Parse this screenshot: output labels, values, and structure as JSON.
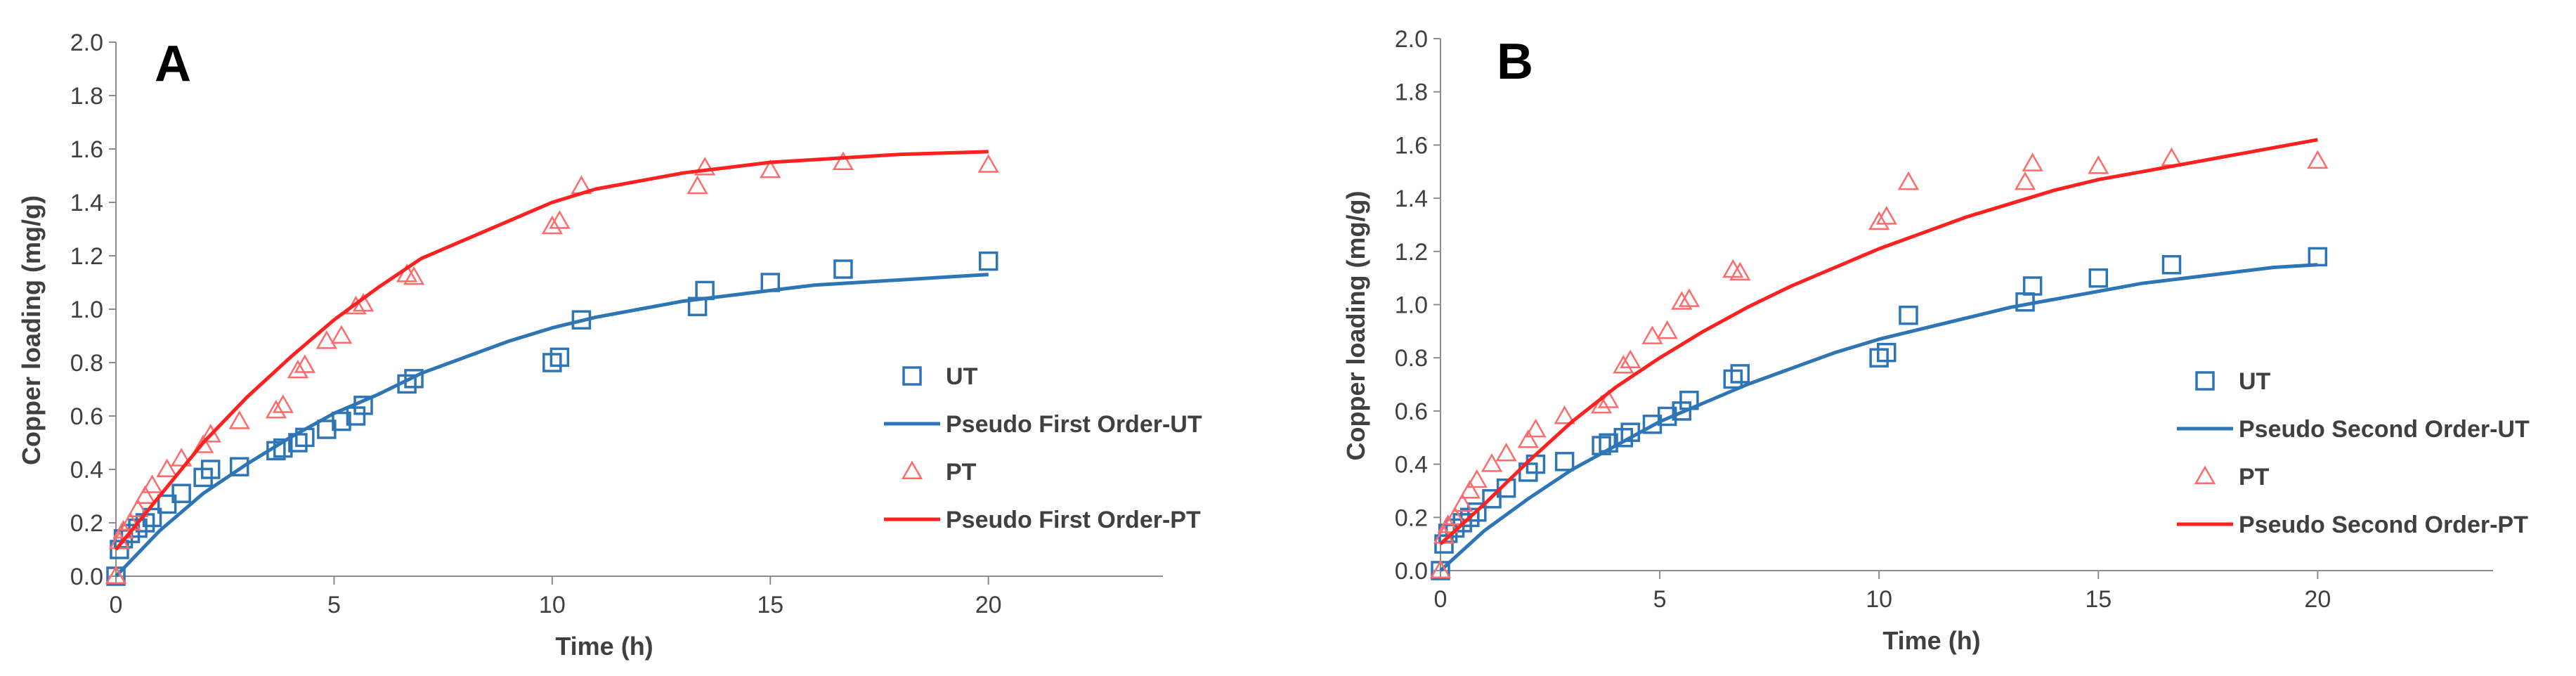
{
  "chart_data": [
    {
      "type": "scatter",
      "panel": "A",
      "xlabel": "Time (h)",
      "ylabel": "Copper loading (mg/g)",
      "xlim": [
        0,
        24
      ],
      "ylim": [
        0,
        2.0
      ],
      "xticks": [
        0,
        5,
        10,
        15,
        20
      ],
      "yticks": [
        0.0,
        0.2,
        0.4,
        0.6,
        0.8,
        1.0,
        1.2,
        1.4,
        1.6,
        1.8,
        2.0
      ],
      "ytick_labels": [
        "0.0",
        "0.2",
        "0.4",
        "0.6",
        "0.8",
        "1.0",
        "1.2",
        "1.4",
        "1.6",
        "1.8",
        "2.0"
      ],
      "legend_position": "right",
      "series": [
        {
          "name": "UT",
          "kind": "marker",
          "marker": "square",
          "color": "#2E75B6",
          "x": [
            0,
            0.08,
            0.17,
            0.33,
            0.5,
            0.67,
            0.83,
            1.17,
            1.5,
            2.0,
            2.17,
            2.83,
            3.67,
            3.83,
            4.17,
            4.33,
            4.83,
            5.17,
            5.5,
            5.67,
            6.67,
            6.83,
            10.0,
            10.17,
            10.67,
            13.33,
            13.5,
            15.0,
            16.67,
            20.0
          ],
          "y": [
            0,
            0.1,
            0.14,
            0.16,
            0.18,
            0.2,
            0.22,
            0.27,
            0.31,
            0.37,
            0.4,
            0.41,
            0.47,
            0.48,
            0.5,
            0.52,
            0.55,
            0.58,
            0.6,
            0.64,
            0.72,
            0.74,
            0.8,
            0.82,
            0.96,
            1.01,
            1.07,
            1.1,
            1.15,
            1.18
          ]
        },
        {
          "name": "Pseudo First Order-UT",
          "kind": "line",
          "color": "#2E75B6",
          "x": [
            0,
            1,
            2,
            3,
            4,
            5,
            6,
            7,
            8,
            9,
            10,
            11,
            12,
            13,
            14,
            15,
            16,
            17,
            18,
            19,
            20
          ],
          "y": [
            0,
            0.17,
            0.31,
            0.42,
            0.52,
            0.61,
            0.68,
            0.76,
            0.82,
            0.88,
            0.93,
            0.97,
            1.0,
            1.03,
            1.05,
            1.07,
            1.09,
            1.1,
            1.11,
            1.12,
            1.13
          ]
        },
        {
          "name": "PT",
          "kind": "marker",
          "marker": "triangle",
          "color": "#FF6B6B",
          "x": [
            0,
            0.08,
            0.17,
            0.33,
            0.5,
            0.67,
            0.83,
            1.17,
            1.5,
            2.0,
            2.17,
            2.83,
            3.67,
            3.83,
            4.17,
            4.33,
            4.83,
            5.17,
            5.5,
            5.67,
            6.67,
            6.83,
            10.0,
            10.17,
            10.67,
            13.33,
            13.5,
            15.0,
            16.67,
            20.0
          ],
          "y": [
            0,
            0.13,
            0.17,
            0.2,
            0.25,
            0.3,
            0.34,
            0.4,
            0.44,
            0.49,
            0.53,
            0.58,
            0.62,
            0.64,
            0.77,
            0.79,
            0.88,
            0.9,
            1.01,
            1.02,
            1.13,
            1.12,
            1.31,
            1.33,
            1.46,
            1.46,
            1.53,
            1.52,
            1.55,
            1.54
          ]
        },
        {
          "name": "Pseudo First Order-PT",
          "kind": "line",
          "color": "#FF2020",
          "x": [
            0,
            1,
            2,
            3,
            4,
            5,
            6,
            7,
            8,
            9,
            10,
            11,
            12,
            13,
            14,
            15,
            16,
            17,
            18,
            19,
            20
          ],
          "y": [
            0.1,
            0.3,
            0.5,
            0.67,
            0.82,
            0.96,
            1.08,
            1.19,
            1.26,
            1.33,
            1.4,
            1.45,
            1.48,
            1.51,
            1.53,
            1.55,
            1.56,
            1.57,
            1.58,
            1.585,
            1.59
          ]
        }
      ]
    },
    {
      "type": "scatter",
      "panel": "B",
      "xlabel": "Time (h)",
      "ylabel": "Copper loading (mg/g)",
      "xlim": [
        0,
        24
      ],
      "ylim": [
        0,
        2.0
      ],
      "xticks": [
        0,
        5,
        10,
        15,
        20
      ],
      "yticks": [
        0.0,
        0.2,
        0.4,
        0.6,
        0.8,
        1.0,
        1.2,
        1.4,
        1.6,
        1.8,
        2.0
      ],
      "ytick_labels": [
        "0.0",
        "0.2",
        "0.4",
        "0.6",
        "0.8",
        "1.0",
        "1.2",
        "1.4",
        "1.6",
        "1.8",
        "2.0"
      ],
      "legend_position": "right",
      "series": [
        {
          "name": "UT",
          "kind": "marker",
          "marker": "square",
          "color": "#2E75B6",
          "x": [
            0,
            0.08,
            0.17,
            0.33,
            0.5,
            0.67,
            0.83,
            1.17,
            1.5,
            2.0,
            2.17,
            2.83,
            3.67,
            3.83,
            4.17,
            4.33,
            4.83,
            5.17,
            5.5,
            5.67,
            6.67,
            6.83,
            10.0,
            10.17,
            10.67,
            13.33,
            13.5,
            15.0,
            16.67,
            20.0
          ],
          "y": [
            0,
            0.1,
            0.14,
            0.16,
            0.18,
            0.2,
            0.22,
            0.27,
            0.31,
            0.37,
            0.4,
            0.41,
            0.47,
            0.48,
            0.5,
            0.52,
            0.55,
            0.58,
            0.6,
            0.64,
            0.72,
            0.74,
            0.8,
            0.82,
            0.96,
            1.01,
            1.07,
            1.1,
            1.15,
            1.18
          ]
        },
        {
          "name": "Pseudo Second Order-UT",
          "kind": "line",
          "color": "#2E75B6",
          "x": [
            0,
            1,
            2,
            3,
            4,
            5,
            6,
            7,
            8,
            9,
            10,
            11,
            12,
            13,
            14,
            15,
            16,
            17,
            18,
            19,
            20
          ],
          "y": [
            0,
            0.15,
            0.27,
            0.38,
            0.47,
            0.56,
            0.63,
            0.7,
            0.76,
            0.82,
            0.87,
            0.91,
            0.95,
            0.99,
            1.02,
            1.05,
            1.08,
            1.1,
            1.12,
            1.14,
            1.15
          ]
        },
        {
          "name": "PT",
          "kind": "marker",
          "marker": "triangle",
          "color": "#FF6B6B",
          "x": [
            0,
            0.08,
            0.17,
            0.33,
            0.5,
            0.67,
            0.83,
            1.17,
            1.5,
            2.0,
            2.17,
            2.83,
            3.67,
            3.83,
            4.17,
            4.33,
            4.83,
            5.17,
            5.5,
            5.67,
            6.67,
            6.83,
            10.0,
            10.17,
            10.67,
            13.33,
            13.5,
            15.0,
            16.67,
            20.0
          ],
          "y": [
            0,
            0.13,
            0.17,
            0.2,
            0.25,
            0.3,
            0.34,
            0.4,
            0.44,
            0.49,
            0.53,
            0.58,
            0.62,
            0.64,
            0.77,
            0.79,
            0.88,
            0.9,
            1.01,
            1.02,
            1.13,
            1.12,
            1.31,
            1.33,
            1.46,
            1.46,
            1.53,
            1.52,
            1.55,
            1.54
          ]
        },
        {
          "name": "Pseudo Second Order-PT",
          "kind": "line",
          "color": "#FF2020",
          "x": [
            0,
            1,
            2,
            3,
            4,
            5,
            6,
            7,
            8,
            9,
            10,
            11,
            12,
            13,
            14,
            15,
            16,
            17,
            18,
            19,
            20
          ],
          "y": [
            0.1,
            0.25,
            0.41,
            0.56,
            0.69,
            0.8,
            0.9,
            0.99,
            1.07,
            1.14,
            1.21,
            1.27,
            1.33,
            1.38,
            1.43,
            1.47,
            1.5,
            1.53,
            1.56,
            1.59,
            1.62
          ]
        }
      ]
    }
  ]
}
